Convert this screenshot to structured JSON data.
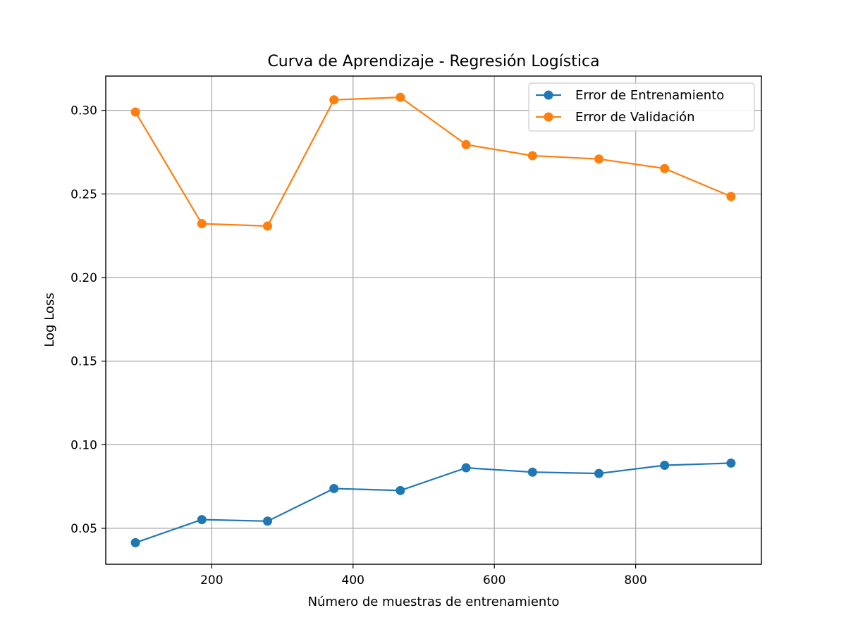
{
  "chart_data": {
    "type": "line",
    "title": "Curva de Aprendizaje - Regresión Logística",
    "xlabel": "Número de muestras de entrenamiento",
    "ylabel": "Log Loss",
    "xlim": [
      50,
      978
    ],
    "ylim": [
      0.0285,
      0.3205
    ],
    "xticks": [
      200,
      400,
      600,
      800
    ],
    "xtick_labels": [
      "200",
      "400",
      "600",
      "800"
    ],
    "yticks": [
      0.05,
      0.1,
      0.15,
      0.2,
      0.25,
      0.3
    ],
    "ytick_labels": [
      "0.05",
      "0.10",
      "0.15",
      "0.20",
      "0.25",
      "0.30"
    ],
    "grid": true,
    "legend_position": "top-right",
    "x": [
      92,
      186,
      279,
      373,
      467,
      560,
      654,
      748,
      841,
      935
    ],
    "series": [
      {
        "name": "Error de Entrenamiento",
        "color": "#1f77b4",
        "values": [
          0.0414,
          0.0552,
          0.0543,
          0.0738,
          0.0726,
          0.0862,
          0.0836,
          0.0828,
          0.0877,
          0.089
        ]
      },
      {
        "name": "Error de Validación",
        "color": "#ff7f0e",
        "values": [
          0.299,
          0.2322,
          0.2308,
          0.3063,
          0.3078,
          0.2795,
          0.2729,
          0.2709,
          0.2652,
          0.2485
        ]
      }
    ]
  }
}
